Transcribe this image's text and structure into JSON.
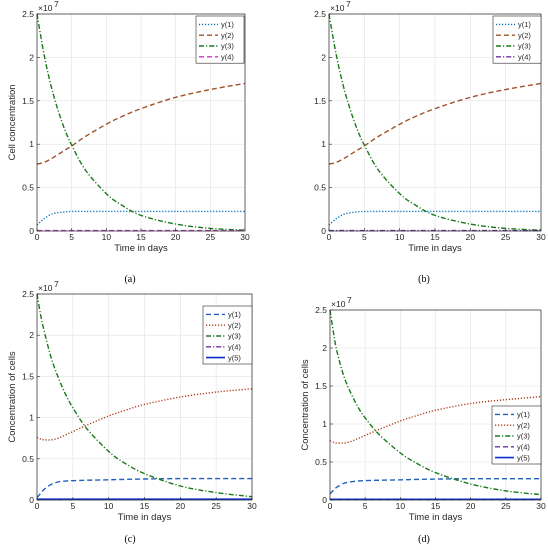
{
  "chart_data": [
    {
      "type": "line",
      "panel_label": "(a)",
      "xlabel": "Time in days",
      "ylabel": "Cell concentration",
      "y_exponent_label": "×10",
      "y_exponent_power": "7",
      "xlim": [
        0,
        30
      ],
      "ylim": [
        0,
        2.5
      ],
      "xticks": [
        "0",
        "5",
        "10",
        "15",
        "20",
        "25",
        "30"
      ],
      "yticks": [
        "0",
        "0.5",
        "1",
        "1.5",
        "2",
        "2.5"
      ],
      "grid": true,
      "legend_position": "top-right",
      "x": [
        0,
        1,
        2,
        3,
        4,
        5,
        7,
        10,
        12,
        15,
        20,
        25,
        30
      ],
      "series": [
        {
          "name": "y(1)",
          "color": "#0072BD",
          "dash": "dotted",
          "values": [
            0.07,
            0.14,
            0.19,
            0.21,
            0.22,
            0.225,
            0.225,
            0.225,
            0.225,
            0.225,
            0.225,
            0.225,
            0.225
          ]
        },
        {
          "name": "y(2)",
          "color": "#A0522D",
          "dash": "dashed",
          "values": [
            0.77,
            0.79,
            0.83,
            0.88,
            0.93,
            0.98,
            1.09,
            1.23,
            1.31,
            1.41,
            1.54,
            1.63,
            1.7
          ]
        },
        {
          "name": "y(3)",
          "color": "#1A7A1A",
          "dash": "dashdot",
          "values": [
            2.5,
            2.04,
            1.68,
            1.4,
            1.17,
            0.99,
            0.7,
            0.43,
            0.31,
            0.18,
            0.08,
            0.03,
            0.01
          ]
        },
        {
          "name": "y(4)",
          "color": "#CC33CC",
          "dash": "dashed",
          "values": [
            0.005,
            0.005,
            0.005,
            0.005,
            0.005,
            0.005,
            0.005,
            0.005,
            0.005,
            0.005,
            0.005,
            0.005,
            0.005
          ]
        }
      ]
    },
    {
      "type": "line",
      "panel_label": "(b)",
      "xlabel": "Time in days",
      "ylabel": "",
      "y_exponent_label": "×10",
      "y_exponent_power": "7",
      "xlim": [
        0,
        30
      ],
      "ylim": [
        0,
        2.5
      ],
      "xticks": [
        "0",
        "5",
        "10",
        "15",
        "20",
        "25",
        "30"
      ],
      "yticks": [
        "0",
        "0.5",
        "1",
        "1.5",
        "2",
        "2.5"
      ],
      "grid": true,
      "legend_position": "top-right",
      "x": [
        0,
        1,
        2,
        3,
        4,
        5,
        7,
        10,
        12,
        15,
        20,
        25,
        30
      ],
      "series": [
        {
          "name": "y(1)",
          "color": "#0072BD",
          "dash": "dotted",
          "values": [
            0.07,
            0.14,
            0.19,
            0.21,
            0.22,
            0.225,
            0.225,
            0.225,
            0.225,
            0.225,
            0.225,
            0.225,
            0.225
          ]
        },
        {
          "name": "y(2)",
          "color": "#A0522D",
          "dash": "dashed",
          "values": [
            0.77,
            0.79,
            0.83,
            0.88,
            0.93,
            0.98,
            1.09,
            1.23,
            1.31,
            1.41,
            1.54,
            1.63,
            1.7
          ]
        },
        {
          "name": "y(3)",
          "color": "#1A7A1A",
          "dash": "dashdot",
          "values": [
            2.5,
            2.04,
            1.68,
            1.4,
            1.17,
            0.99,
            0.7,
            0.43,
            0.31,
            0.18,
            0.08,
            0.03,
            0.01
          ]
        },
        {
          "name": "y(4)",
          "color": "#7030A0",
          "dash": "dashdot",
          "values": [
            0.005,
            0.005,
            0.005,
            0.005,
            0.005,
            0.005,
            0.005,
            0.005,
            0.005,
            0.005,
            0.005,
            0.005,
            0.005
          ]
        }
      ]
    },
    {
      "type": "line",
      "panel_label": "(c)",
      "xlabel": "Time in days",
      "ylabel": "Concentration of cells",
      "y_exponent_label": "×10",
      "y_exponent_power": "7",
      "xlim": [
        0,
        30
      ],
      "ylim": [
        0,
        2.5
      ],
      "xticks": [
        "0",
        "5",
        "10",
        "15",
        "20",
        "25",
        "30"
      ],
      "yticks": [
        "0",
        "0.5",
        "1",
        "1.5",
        "2",
        "2.5"
      ],
      "grid": true,
      "legend_position": "top-right",
      "x": [
        0,
        0.5,
        1,
        2,
        3,
        4,
        5,
        7,
        10,
        12,
        15,
        20,
        25,
        30
      ],
      "series": [
        {
          "name": "y(1)",
          "color": "#1F5FBF",
          "dash": "dashed",
          "values": [
            0.03,
            0.08,
            0.13,
            0.19,
            0.22,
            0.23,
            0.235,
            0.24,
            0.245,
            0.25,
            0.255,
            0.26,
            0.26,
            0.26
          ]
        },
        {
          "name": "y(2)",
          "color": "#B03A1A",
          "dash": "dotted",
          "values": [
            0.76,
            0.74,
            0.73,
            0.73,
            0.75,
            0.79,
            0.83,
            0.91,
            1.02,
            1.08,
            1.16,
            1.25,
            1.31,
            1.35
          ]
        },
        {
          "name": "y(3)",
          "color": "#1A7A1A",
          "dash": "dashdot",
          "values": [
            2.5,
            2.25,
            2.05,
            1.72,
            1.48,
            1.28,
            1.12,
            0.86,
            0.59,
            0.46,
            0.32,
            0.17,
            0.09,
            0.04
          ]
        },
        {
          "name": "y(4)",
          "color": "#7030A0",
          "dash": "dashdot",
          "values": [
            0.005,
            0.005,
            0.005,
            0.005,
            0.005,
            0.005,
            0.005,
            0.005,
            0.005,
            0.005,
            0.005,
            0.005,
            0.005,
            0.005
          ]
        },
        {
          "name": "y(5)",
          "color": "#0A2FCF",
          "dash": "solid",
          "values": [
            0.01,
            0.01,
            0.01,
            0.01,
            0.01,
            0.01,
            0.01,
            0.01,
            0.01,
            0.01,
            0.01,
            0.01,
            0.01,
            0.01
          ]
        }
      ]
    },
    {
      "type": "line",
      "panel_label": "(d)",
      "xlabel": "Time in days",
      "ylabel": "Concentration of cells",
      "y_exponent_label": "×10",
      "y_exponent_power": "7",
      "xlim": [
        0,
        30
      ],
      "ylim": [
        0,
        2.5
      ],
      "xticks": [
        "0",
        "5",
        "10",
        "15",
        "20",
        "25",
        "30"
      ],
      "yticks": [
        "0",
        "0.5",
        "1",
        "1.5",
        "2",
        "2.5"
      ],
      "grid": true,
      "legend_position": "bottom-right",
      "x": [
        0,
        0.5,
        1,
        2,
        3,
        4,
        5,
        7,
        10,
        12,
        15,
        20,
        25,
        30
      ],
      "series": [
        {
          "name": "y(1)",
          "color": "#1F5FBF",
          "dash": "dashed",
          "values": [
            0.08,
            0.13,
            0.17,
            0.22,
            0.24,
            0.25,
            0.255,
            0.26,
            0.265,
            0.27,
            0.275,
            0.28,
            0.28,
            0.28
          ]
        },
        {
          "name": "y(2)",
          "color": "#B03A1A",
          "dash": "dotted",
          "values": [
            0.78,
            0.76,
            0.75,
            0.75,
            0.77,
            0.81,
            0.85,
            0.93,
            1.04,
            1.1,
            1.18,
            1.27,
            1.32,
            1.36
          ]
        },
        {
          "name": "y(3)",
          "color": "#1A7A1A",
          "dash": "dashdot",
          "values": [
            2.5,
            2.2,
            1.95,
            1.62,
            1.4,
            1.22,
            1.08,
            0.86,
            0.62,
            0.5,
            0.36,
            0.21,
            0.12,
            0.07
          ]
        },
        {
          "name": "y(4)",
          "color": "#7030A0",
          "dash": "dashed",
          "values": [
            0.005,
            0.005,
            0.005,
            0.005,
            0.005,
            0.005,
            0.005,
            0.005,
            0.005,
            0.005,
            0.005,
            0.005,
            0.005,
            0.005
          ]
        },
        {
          "name": "y(5)",
          "color": "#0A2FCF",
          "dash": "solid",
          "values": [
            0.01,
            0.01,
            0.01,
            0.01,
            0.01,
            0.01,
            0.01,
            0.01,
            0.01,
            0.01,
            0.01,
            0.01,
            0.01,
            0.01
          ]
        }
      ]
    }
  ]
}
